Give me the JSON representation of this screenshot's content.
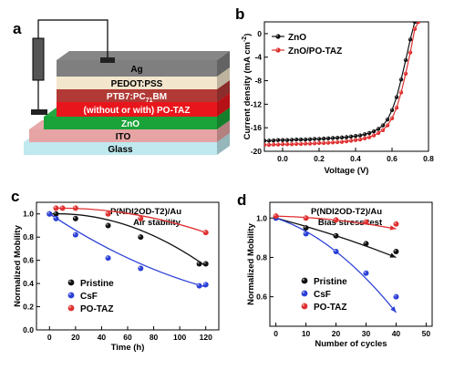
{
  "panel_labels": {
    "a": "a",
    "b": "b",
    "c": "c",
    "d": "d"
  },
  "device": {
    "layers": [
      {
        "name": "Ag",
        "color": "#7f7f7f",
        "text_color": "#000000"
      },
      {
        "name": "PEDOT:PSS",
        "color": "#f2e6cc",
        "text_color": "#000000"
      },
      {
        "name": "PTB7:PC71BM",
        "color": "#b23a36",
        "text_color": "#ffffff"
      },
      {
        "name": "(without or with) PO-TAZ",
        "color": "#e8161c",
        "text_color": "#ffffff"
      },
      {
        "name": "ZnO",
        "color": "#19a338",
        "text_color": "#ffffff"
      },
      {
        "name": "ITO",
        "color": "#e6a4a4",
        "text_color": "#000000"
      },
      {
        "name": "Glass",
        "color": "#bfe9ee",
        "text_color": "#000000"
      }
    ],
    "ptb7_main": "PTB7:PC",
    "ptb7_sub": "71",
    "ptb7_tail": "BM"
  },
  "chart_data": [
    {
      "id": "b",
      "type": "line",
      "xlabel": "Voltage (V)",
      "ylabel": "Current density (mA cm−2)",
      "ylabel_main": "Current density (mA cm",
      "ylabel_sup": "-2",
      "ylabel_close": ")",
      "xlim": [
        -0.1,
        0.8
      ],
      "ylim": [
        -20,
        2
      ],
      "xticks": [
        "0.0",
        "0.2",
        "0.4",
        "0.6",
        "0.8"
      ],
      "yticks": [
        "0",
        "-4",
        "-8",
        "-12",
        "-16",
        "-20"
      ],
      "series": [
        {
          "name": "ZnO",
          "color": "#111111",
          "x": [
            -0.1,
            -0.075,
            -0.05,
            -0.025,
            0.0,
            0.025,
            0.05,
            0.075,
            0.1,
            0.125,
            0.15,
            0.175,
            0.2,
            0.225,
            0.25,
            0.275,
            0.3,
            0.325,
            0.35,
            0.375,
            0.4,
            0.425,
            0.45,
            0.475,
            0.5,
            0.525,
            0.55,
            0.575,
            0.6,
            0.625,
            0.65,
            0.675,
            0.7,
            0.725,
            0.74
          ],
          "y": [
            -18.2,
            -18.2,
            -18.15,
            -18.1,
            -18.1,
            -18.1,
            -18.05,
            -18.0,
            -18.0,
            -18.0,
            -17.95,
            -17.9,
            -17.9,
            -17.85,
            -17.8,
            -17.75,
            -17.7,
            -17.65,
            -17.6,
            -17.5,
            -17.4,
            -17.3,
            -17.1,
            -16.9,
            -16.6,
            -16.2,
            -15.6,
            -14.6,
            -13.0,
            -10.8,
            -7.8,
            -4.5,
            -1.0,
            2.0,
            2.0
          ]
        },
        {
          "name": "ZnO/PO-TAZ",
          "color": "#e03030",
          "x": [
            -0.1,
            -0.075,
            -0.05,
            -0.025,
            0.0,
            0.025,
            0.05,
            0.075,
            0.1,
            0.125,
            0.15,
            0.175,
            0.2,
            0.225,
            0.25,
            0.275,
            0.3,
            0.325,
            0.35,
            0.375,
            0.4,
            0.425,
            0.45,
            0.475,
            0.5,
            0.525,
            0.55,
            0.575,
            0.6,
            0.625,
            0.65,
            0.675,
            0.7,
            0.725,
            0.745
          ],
          "y": [
            -18.9,
            -18.9,
            -18.85,
            -18.85,
            -18.8,
            -18.8,
            -18.8,
            -18.75,
            -18.75,
            -18.7,
            -18.7,
            -18.65,
            -18.6,
            -18.6,
            -18.55,
            -18.5,
            -18.45,
            -18.4,
            -18.3,
            -18.2,
            -18.1,
            -18.0,
            -17.8,
            -17.6,
            -17.3,
            -16.9,
            -16.4,
            -15.6,
            -14.4,
            -12.6,
            -10.0,
            -6.8,
            -3.2,
            0.8,
            2.0
          ]
        }
      ]
    },
    {
      "id": "c",
      "type": "scatter",
      "title": "P(NDI2OD-T2)/Au",
      "subtitle": "Air stability",
      "xlabel": "Time (h)",
      "ylabel": "Normalized Mobility",
      "xlim": [
        -10,
        130
      ],
      "ylim": [
        0.0,
        1.1
      ],
      "xticks": [
        "0",
        "20",
        "40",
        "60",
        "80",
        "100",
        "120"
      ],
      "yticks": [
        "0.0",
        "0.2",
        "0.4",
        "0.6",
        "0.8",
        "1.0"
      ],
      "series": [
        {
          "name": "Pristine",
          "color": "#111111",
          "x": [
            0,
            5,
            20,
            45,
            70,
            115,
            120
          ],
          "y": [
            1.0,
            1.0,
            0.96,
            0.9,
            0.8,
            0.57,
            0.57
          ],
          "fit_end": 0.55
        },
        {
          "name": "CsF",
          "color": "#2a3fd6",
          "x": [
            0,
            5,
            20,
            45,
            70,
            115,
            120
          ],
          "y": [
            1.0,
            0.96,
            0.82,
            0.62,
            0.53,
            0.38,
            0.39
          ],
          "fit_end": 0.37
        },
        {
          "name": "PO-TAZ",
          "color": "#e03030",
          "x": [
            5,
            10,
            20,
            45,
            70,
            120
          ],
          "y": [
            1.05,
            1.05,
            1.05,
            1.0,
            0.96,
            0.84
          ],
          "fit_end": 0.84
        }
      ]
    },
    {
      "id": "d",
      "type": "scatter",
      "title": "P(NDI2OD-T2)/Au",
      "subtitle": "Bias stress test",
      "xlabel": "Number of cycles",
      "ylabel": "Normalized Mobility",
      "xlim": [
        -2,
        52
      ],
      "ylim": [
        0.45,
        1.08
      ],
      "xticks": [
        "0",
        "10",
        "20",
        "30",
        "40",
        "50"
      ],
      "yticks": [
        "0.6",
        "0.8",
        "1.0"
      ],
      "series": [
        {
          "name": "Pristine",
          "color": "#111111",
          "x": [
            0,
            10,
            20,
            30,
            40
          ],
          "y": [
            1.0,
            0.95,
            0.91,
            0.87,
            0.83
          ],
          "fit_end": 0.8
        },
        {
          "name": "CsF",
          "color": "#2a3fd6",
          "x": [
            0,
            10,
            20,
            30,
            40
          ],
          "y": [
            1.0,
            0.92,
            0.83,
            0.72,
            0.6
          ],
          "fit_end": 0.52
        },
        {
          "name": "PO-TAZ",
          "color": "#e03030",
          "x": [
            0,
            10,
            20,
            30,
            40
          ],
          "y": [
            1.01,
            1.0,
            0.99,
            0.98,
            0.97
          ],
          "fit_end": 0.945
        }
      ]
    }
  ]
}
